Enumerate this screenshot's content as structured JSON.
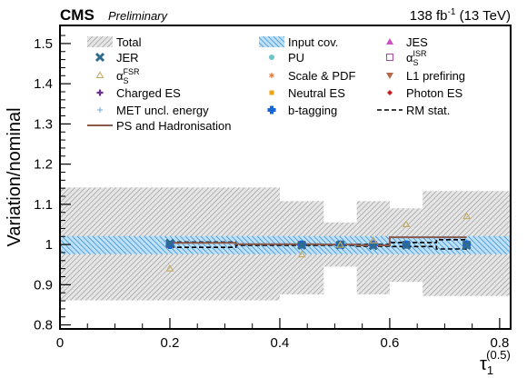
{
  "chart_data": {
    "type": "scatter",
    "header": {
      "experiment": "CMS",
      "status": "Preliminary",
      "lumi_pre": "138 fb",
      "lumi_exp": "-1",
      "lumi_post": " (13 TeV)"
    },
    "ylabel": "Variation/nominal",
    "xlabel": {
      "base": "τ",
      "sub": "1",
      "sup": "(0.5)"
    },
    "xlim": [
      0,
      0.82
    ],
    "ylim": [
      0.79,
      1.545
    ],
    "xticks": [
      {
        "v": 0,
        "label": "0"
      },
      {
        "v": 0.2,
        "label": "0.2"
      },
      {
        "v": 0.4,
        "label": "0.4"
      },
      {
        "v": 0.6,
        "label": "0.6"
      },
      {
        "v": 0.8,
        "label": "0.8"
      }
    ],
    "yticks": [
      {
        "v": 0.8,
        "label": "0.8"
      },
      {
        "v": 0.9,
        "label": "0.9"
      },
      {
        "v": 1.0,
        "label": "1"
      },
      {
        "v": 1.1,
        "label": "1.1"
      },
      {
        "v": 1.2,
        "label": "1.2"
      },
      {
        "v": 1.3,
        "label": "1.3"
      },
      {
        "v": 1.4,
        "label": "1.4"
      },
      {
        "v": 1.5,
        "label": "1.5"
      }
    ],
    "bins": [
      {
        "lo": 0.0,
        "hi": 0.4,
        "center": 0.2,
        "total": [
          0.861,
          1.142
        ],
        "input": [
          0.976,
          1.021
        ]
      },
      {
        "lo": 0.4,
        "hi": 0.48,
        "center": 0.44,
        "total": [
          0.876,
          1.108
        ],
        "input": [
          0.976,
          1.021
        ]
      },
      {
        "lo": 0.48,
        "hi": 0.54,
        "center": 0.51,
        "total": [
          0.945,
          1.055
        ],
        "input": [
          0.976,
          1.021
        ]
      },
      {
        "lo": 0.54,
        "hi": 0.6,
        "center": 0.57,
        "total": [
          0.876,
          1.108
        ],
        "input": [
          0.976,
          1.021
        ]
      },
      {
        "lo": 0.6,
        "hi": 0.66,
        "center": 0.63,
        "total": [
          0.907,
          1.09
        ],
        "input": [
          0.976,
          1.021
        ]
      },
      {
        "lo": 0.66,
        "hi": 0.82,
        "center": 0.74,
        "total": [
          0.872,
          1.133
        ],
        "input": [
          0.976,
          1.021
        ]
      }
    ],
    "bin_centers": [
      0.2,
      0.44,
      0.51,
      0.57,
      0.63,
      0.74
    ],
    "series": [
      {
        "name": "Total",
        "kind": "band_total",
        "color": "#bdbdbd"
      },
      {
        "name": "Input cov.",
        "kind": "band_input",
        "color": "#2f8ed4"
      },
      {
        "name": "JES",
        "kind": "points",
        "marker": "triangle-up",
        "color": "#cc4fc4",
        "values": [
          1.0,
          1.0,
          1.0,
          1.0,
          1.0,
          1.0
        ]
      },
      {
        "name": "JER",
        "kind": "points",
        "marker": "x-thick",
        "color": "#2e6b8c",
        "values": [
          1.003,
          0.998,
          0.999,
          0.997,
          0.998,
          0.998
        ]
      },
      {
        "name": "PU",
        "kind": "points",
        "marker": "circle",
        "color": "#6bc3c9",
        "values": [
          1.0,
          1.0,
          1.0,
          1.0,
          1.0,
          1.0
        ]
      },
      {
        "name": "α_S^ISR",
        "label_base": "α",
        "label_sub": "S",
        "label_sup": "ISR",
        "kind": "points",
        "marker": "square-open",
        "color": "#a051a3",
        "values": [
          1.0,
          1.0,
          1.0,
          1.0,
          1.0,
          1.0
        ]
      },
      {
        "name": "α_S^FSR",
        "label_base": "α",
        "label_sub": "S",
        "label_sup": "FSR",
        "kind": "points",
        "marker": "triangle-open",
        "color": "#c4aa62",
        "values": [
          0.94,
          0.975,
          0.999,
          1.01,
          1.05,
          1.07
        ]
      },
      {
        "name": "Scale & PDF",
        "kind": "points",
        "marker": "asterisk",
        "color": "#e37b3a",
        "values": [
          1.0,
          1.0,
          1.0,
          1.0,
          1.0,
          1.0
        ]
      },
      {
        "name": "L1 prefiring",
        "kind": "points",
        "marker": "triangle-down",
        "color": "#b56b4b",
        "values": [
          1.0,
          1.0,
          1.0,
          1.0,
          1.0,
          1.0
        ]
      },
      {
        "name": "Charged ES",
        "kind": "points",
        "marker": "cross",
        "color": "#6a2e94",
        "values": [
          1.0,
          1.0,
          1.0,
          1.0,
          1.0,
          1.0
        ]
      },
      {
        "name": "Neutral ES",
        "kind": "points",
        "marker": "square-small",
        "color": "#f2a310",
        "values": [
          1.0,
          1.0,
          1.0,
          1.0,
          1.0,
          1.0
        ]
      },
      {
        "name": "Photon ES",
        "kind": "points",
        "marker": "diamond-small",
        "color": "#c41e1e",
        "values": [
          1.0,
          1.0,
          1.0,
          1.0,
          1.0,
          1.0
        ]
      },
      {
        "name": "MET uncl. energy",
        "kind": "points",
        "marker": "plus-thin",
        "color": "#6ea8dc",
        "values": [
          1.0,
          1.0,
          1.0,
          1.0,
          1.0,
          1.0
        ]
      },
      {
        "name": "b-tagging",
        "kind": "points",
        "marker": "cross-thick",
        "color": "#1565d8",
        "values": [
          0.999,
          1.0,
          1.0,
          1.0,
          1.0,
          1.0
        ]
      },
      {
        "name": "RM stat.",
        "kind": "step_dashed",
        "color": "#000000",
        "upper": [
          1.006,
          1.0,
          1.0,
          1.0,
          1.005,
          1.012
        ],
        "lower": [
          0.993,
          0.998,
          0.998,
          0.996,
          0.995,
          0.989
        ]
      },
      {
        "name": "PS and Hadronisation",
        "kind": "step_line",
        "color": "#8a5a4e",
        "values": [
          1.004,
          1.001,
          1.0,
          0.998,
          1.018,
          1.018
        ]
      }
    ],
    "legend_order": [
      "Total",
      "Input cov.",
      "JES",
      "JER",
      "PU",
      "α_S^ISR",
      "α_S^FSR",
      "Scale & PDF",
      "L1 prefiring",
      "Charged ES",
      "Neutral ES",
      "Photon ES",
      "MET uncl. energy",
      "b-tagging",
      "RM stat.",
      "PS and Hadronisation"
    ],
    "legend_placement": "top",
    "grid": false
  }
}
